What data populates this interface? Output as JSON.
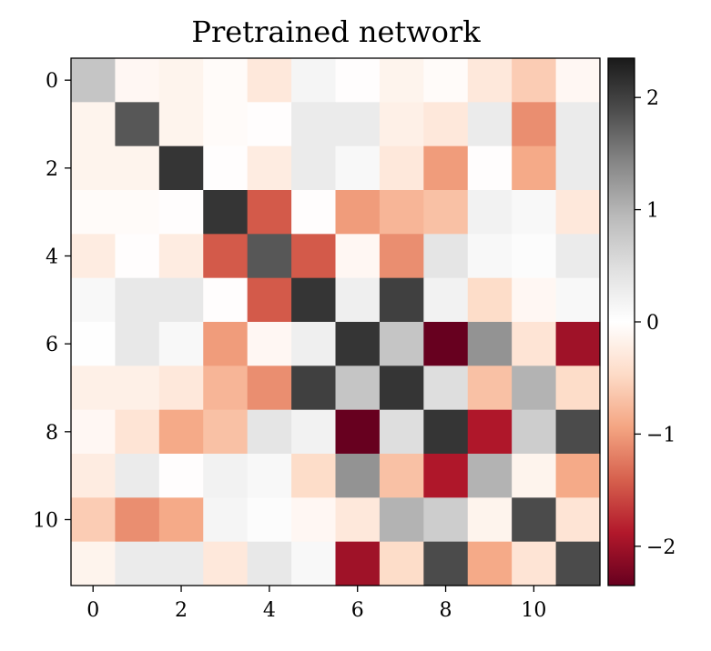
{
  "chart_data": {
    "type": "heatmap",
    "title": "Pretrained network",
    "xlabel": "",
    "ylabel": "",
    "xticks": [
      "0",
      "2",
      "4",
      "6",
      "8",
      "10"
    ],
    "yticks": [
      "0",
      "2",
      "4",
      "6",
      "8",
      "10"
    ],
    "colorbar": {
      "colormap": "RdGy",
      "range": [
        -2.35,
        2.35
      ],
      "ticks": [
        "2",
        "1",
        "0",
        "−1",
        "−2"
      ],
      "tick_values": [
        2,
        1,
        0,
        -1,
        -2
      ]
    },
    "matrix": [
      [
        0.8,
        -0.1,
        -0.15,
        -0.05,
        -0.3,
        0.15,
        -0.02,
        -0.15,
        -0.05,
        -0.3,
        -0.6,
        -0.1
      ],
      [
        -0.15,
        1.8,
        -0.15,
        -0.05,
        -0.02,
        0.3,
        0.3,
        -0.2,
        -0.3,
        0.3,
        -1.1,
        0.3
      ],
      [
        -0.15,
        -0.15,
        2.1,
        -0.02,
        -0.25,
        0.3,
        0.1,
        -0.3,
        -1.0,
        -0.02,
        -0.9,
        0.3
      ],
      [
        -0.05,
        -0.05,
        -0.02,
        2.1,
        -1.45,
        -0.02,
        -1.0,
        -0.8,
        -0.7,
        0.2,
        0.1,
        -0.3
      ],
      [
        -0.25,
        -0.02,
        -0.25,
        -1.45,
        1.8,
        -1.45,
        -0.1,
        -1.1,
        0.4,
        0.1,
        0.05,
        0.3
      ],
      [
        0.1,
        0.35,
        0.35,
        -0.02,
        -1.45,
        2.1,
        0.25,
        2.0,
        0.2,
        -0.45,
        -0.1,
        0.1
      ],
      [
        0.02,
        0.35,
        0.1,
        -1.0,
        -0.1,
        0.25,
        2.1,
        0.8,
        -2.35,
        1.3,
        -0.35,
        -2.0
      ],
      [
        -0.2,
        -0.2,
        -0.3,
        -0.8,
        -1.1,
        2.0,
        0.8,
        2.1,
        0.5,
        -0.7,
        1.0,
        -0.45
      ],
      [
        -0.1,
        -0.35,
        -0.9,
        -0.7,
        0.4,
        0.2,
        -2.35,
        0.5,
        2.1,
        -1.9,
        0.7,
        1.9
      ],
      [
        -0.25,
        0.3,
        -0.02,
        0.2,
        0.1,
        -0.45,
        1.3,
        -0.7,
        -1.9,
        1.0,
        -0.15,
        -0.9
      ],
      [
        -0.6,
        -1.1,
        -0.9,
        0.15,
        0.05,
        -0.1,
        -0.3,
        1.0,
        0.7,
        -0.15,
        1.9,
        -0.35
      ],
      [
        -0.15,
        0.3,
        0.3,
        -0.3,
        0.35,
        0.1,
        -2.0,
        -0.45,
        1.9,
        -0.9,
        -0.35,
        1.9
      ]
    ]
  }
}
